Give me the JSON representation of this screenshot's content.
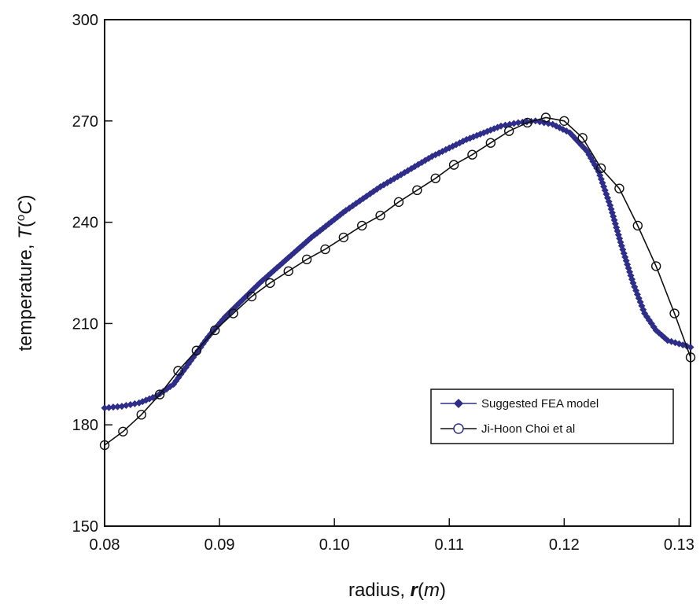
{
  "chart_data": {
    "type": "line",
    "xlabel": {
      "prefix": "radius, ",
      "var": "r",
      "unit": "m"
    },
    "ylabel": {
      "prefix": "temperature, ",
      "var": "T",
      "sup": "o",
      "unit": "C"
    },
    "xlim": [
      0.08,
      0.131
    ],
    "ylim": [
      150,
      300
    ],
    "xticks": [
      0.08,
      0.09,
      0.1,
      0.11,
      0.12,
      0.13
    ],
    "xtick_labels": [
      "0.08",
      "0.09",
      "0.10",
      "0.11",
      "0.12",
      "0.13"
    ],
    "yticks": [
      150,
      180,
      210,
      240,
      270,
      300
    ],
    "ytick_labels": [
      "150",
      "180",
      "210",
      "240",
      "270",
      "300"
    ],
    "grid": false,
    "legend_position": "lower-right",
    "series": [
      {
        "name": "Suggested FEA model",
        "color": "#2e2e8a",
        "marker": "diamond",
        "x": [
          0.08,
          0.0815,
          0.083,
          0.0845,
          0.086,
          0.0875,
          0.089,
          0.0905,
          0.092,
          0.0935,
          0.095,
          0.0965,
          0.098,
          0.0995,
          0.101,
          0.1025,
          0.104,
          0.1055,
          0.107,
          0.1085,
          0.11,
          0.1115,
          0.113,
          0.1145,
          0.116,
          0.1175,
          0.119,
          0.1205,
          0.122,
          0.123,
          0.124,
          0.125,
          0.126,
          0.127,
          0.128,
          0.129,
          0.13,
          0.131
        ],
        "y": [
          185,
          185.5,
          186.5,
          188.5,
          192,
          199,
          206,
          212,
          217,
          222,
          226.5,
          231,
          235.5,
          239.5,
          243.5,
          247,
          250.5,
          253.5,
          256.5,
          259.5,
          262,
          264.5,
          266.5,
          268.5,
          269.5,
          270,
          269,
          266.5,
          261,
          255,
          245,
          233,
          222,
          213,
          208,
          205,
          204,
          203
        ]
      },
      {
        "name": "Ji-Hoon Choi et al",
        "color": "#111111",
        "marker": "circle",
        "x": [
          0.08,
          0.0816,
          0.0832,
          0.0848,
          0.0864,
          0.088,
          0.0896,
          0.0912,
          0.0928,
          0.0944,
          0.096,
          0.0976,
          0.0992,
          0.1008,
          0.1024,
          0.104,
          0.1056,
          0.1072,
          0.1088,
          0.1104,
          0.112,
          0.1136,
          0.1152,
          0.1168,
          0.1184,
          0.12,
          0.1216,
          0.1232,
          0.1248,
          0.1264,
          0.128,
          0.1296,
          0.131
        ],
        "y": [
          174,
          178,
          183,
          189,
          196,
          202,
          208,
          213,
          218,
          222,
          225.5,
          229,
          232,
          235.5,
          239,
          242,
          246,
          249.5,
          253,
          257,
          260,
          263.5,
          267,
          269.5,
          271,
          270,
          265,
          256,
          250,
          239,
          227,
          213,
          200
        ]
      }
    ]
  }
}
